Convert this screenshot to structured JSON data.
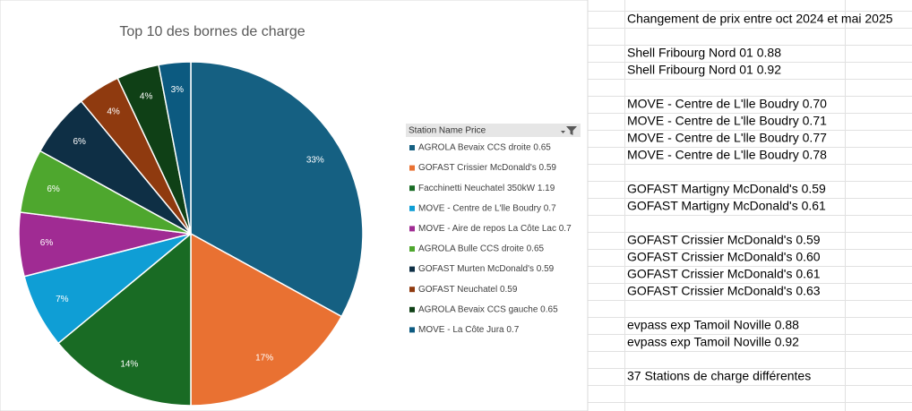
{
  "chart_data": {
    "type": "pie",
    "title": "Top 10 des bornes de charge",
    "legend_title": "Station Name Price",
    "categories": [
      "AGROLA Bevaix CCS droite 0.65",
      "GOFAST Crissier McDonald's 0.59",
      "Facchinetti Neuchatel 350kW 1.19",
      "MOVE - Centre de L'lle Boudry 0.7",
      "MOVE - Aire de repos La Côte Lac 0.7",
      "AGROLA Bulle CCS droite 0.65",
      "GOFAST Murten McDonald's 0.59",
      "GOFAST Neuchatel 0.59",
      "AGROLA Bevaix CCS gauche 0.65",
      "MOVE - La Côte Jura 0.7"
    ],
    "values": [
      33,
      17,
      14,
      7,
      6,
      6,
      6,
      4,
      4,
      3
    ],
    "value_labels": [
      "33%",
      "17%",
      "14%",
      "7%",
      "6%",
      "6%",
      "6%",
      "4%",
      "4%",
      "3%"
    ],
    "colors": [
      "#156082",
      "#e97132",
      "#196b24",
      "#0f9ed5",
      "#a02b93",
      "#4ea72e",
      "#0e2f45",
      "#8f3a0f",
      "#0f4016",
      "#0c5a80"
    ]
  },
  "sheet": {
    "blocks": [
      [
        "Changement de prix entre oct 2024 et mai 2025"
      ],
      [
        "Shell Fribourg Nord 01 0.88",
        "Shell Fribourg Nord 01 0.92"
      ],
      [
        "MOVE - Centre de L'lle Boudry 0.70",
        "MOVE - Centre de L'lle Boudry 0.71",
        "MOVE - Centre de L'lle Boudry 0.77",
        "MOVE - Centre de L'lle Boudry 0.78"
      ],
      [
        "GOFAST Martigny McDonald's 0.59",
        "GOFAST Martigny McDonald's 0.61"
      ],
      [
        "GOFAST Crissier McDonald's 0.59",
        "GOFAST Crissier McDonald's 0.60",
        "GOFAST Crissier McDonald's 0.61",
        "GOFAST Crissier McDonald's 0.63"
      ],
      [
        "evpass exp Tamoil Noville 0.88",
        "evpass exp Tamoil Noville 0.92"
      ],
      [
        "37 Stations de charge différentes"
      ]
    ]
  }
}
